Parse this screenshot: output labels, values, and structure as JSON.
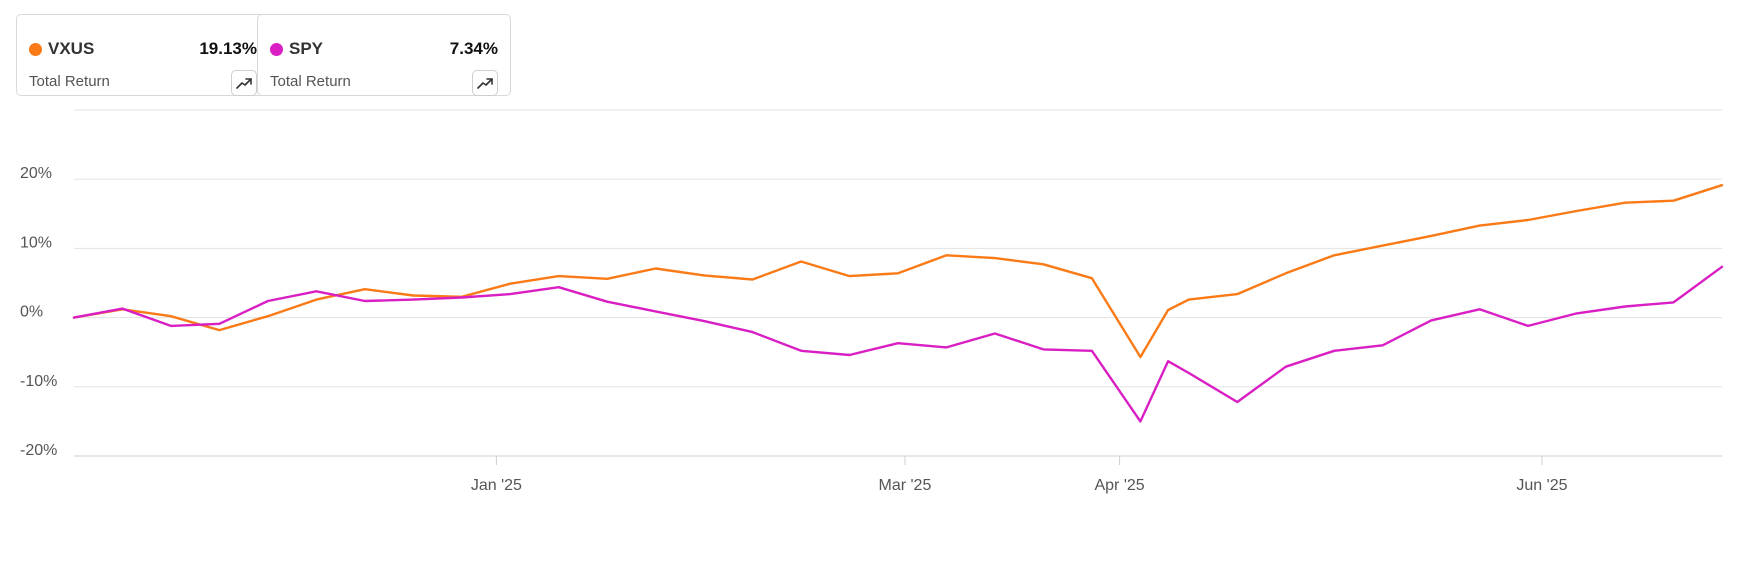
{
  "cards": [
    {
      "ticker": "VXUS",
      "value": "19.13%",
      "label": "Total Return",
      "color": "#f97a16",
      "icon": "trending-up-icon"
    },
    {
      "ticker": "SPY",
      "value": "7.34%",
      "label": "Total Return",
      "color": "#d91fc4",
      "icon": "trending-up-icon"
    }
  ],
  "chart_data": {
    "type": "line",
    "title": "",
    "xlabel": "",
    "ylabel": "",
    "ylim": [
      -20,
      30
    ],
    "grid": true,
    "legend": "top-left cards",
    "y_ticks": [
      "20%",
      "10%",
      "0%",
      "-10%",
      "-20%"
    ],
    "y_tick_values": [
      20,
      10,
      0,
      -10,
      -20
    ],
    "x_ticks": [
      "Jan '25",
      "Mar '25",
      "Apr '25",
      "Jun '25"
    ],
    "x_tick_dates": [
      "2025-01-01",
      "2025-03-01",
      "2025-04-01",
      "2025-06-01"
    ],
    "x_range": [
      "2024-11-01",
      "2025-06-27"
    ],
    "series": [
      {
        "name": "VXUS",
        "color": "#f97a16",
        "x": [
          "2024-11-01",
          "2024-11-08",
          "2024-11-15",
          "2024-11-22",
          "2024-11-29",
          "2024-12-06",
          "2024-12-13",
          "2024-12-20",
          "2024-12-27",
          "2025-01-03",
          "2025-01-10",
          "2025-01-17",
          "2025-01-24",
          "2025-01-31",
          "2025-02-07",
          "2025-02-14",
          "2025-02-21",
          "2025-02-28",
          "2025-03-07",
          "2025-03-14",
          "2025-03-21",
          "2025-03-28",
          "2025-04-04",
          "2025-04-08",
          "2025-04-11",
          "2025-04-18",
          "2025-04-25",
          "2025-05-02",
          "2025-05-09",
          "2025-05-16",
          "2025-05-23",
          "2025-05-30",
          "2025-06-06",
          "2025-06-13",
          "2025-06-20",
          "2025-06-27"
        ],
        "values": [
          0,
          1.2,
          0.2,
          -1.8,
          0.2,
          2.6,
          4.1,
          3.2,
          3,
          4.9,
          6,
          5.6,
          7.1,
          6.1,
          5.5,
          8.1,
          6,
          6.4,
          9,
          8.6,
          7.7,
          5.7,
          -5.7,
          1.1,
          2.6,
          3.4,
          6.4,
          9,
          10.4,
          11.8,
          13.3,
          14.1,
          15.4,
          16.6,
          16.9,
          19.13
        ]
      },
      {
        "name": "SPY",
        "color": "#d91fc4",
        "x": [
          "2024-11-01",
          "2024-11-08",
          "2024-11-15",
          "2024-11-22",
          "2024-11-29",
          "2024-12-06",
          "2024-12-13",
          "2024-12-20",
          "2024-12-27",
          "2025-01-03",
          "2025-01-10",
          "2025-01-17",
          "2025-01-24",
          "2025-01-31",
          "2025-02-07",
          "2025-02-14",
          "2025-02-21",
          "2025-02-28",
          "2025-03-07",
          "2025-03-14",
          "2025-03-21",
          "2025-03-28",
          "2025-04-04",
          "2025-04-08",
          "2025-04-11",
          "2025-04-18",
          "2025-04-25",
          "2025-05-02",
          "2025-05-09",
          "2025-05-16",
          "2025-05-23",
          "2025-05-30",
          "2025-06-06",
          "2025-06-13",
          "2025-06-20",
          "2025-06-27"
        ],
        "values": [
          0,
          1.3,
          -1.2,
          -0.9,
          2.4,
          3.8,
          2.4,
          2.6,
          2.9,
          3.4,
          4.4,
          2.3,
          0.9,
          -0.5,
          -2.1,
          -4.8,
          -5.4,
          -3.7,
          -4.3,
          -2.3,
          -4.6,
          -4.8,
          -15,
          -6.3,
          -8,
          -12.2,
          -7.1,
          -4.8,
          -4,
          -0.4,
          1.2,
          -1.2,
          0.6,
          1.6,
          2.2,
          7.34
        ]
      }
    ]
  }
}
